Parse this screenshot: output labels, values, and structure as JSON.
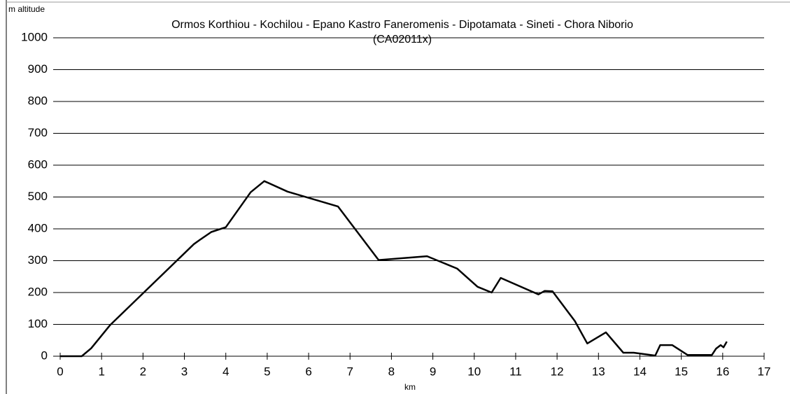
{
  "chart_data": {
    "type": "line",
    "title": "Ormos Korthiou - Kochilou - Epano Kastro Faneromenis - Dipotamata - Sineti - Chora  Niborio",
    "subtitle": "(CA02011x)",
    "y_label": "m altitude",
    "x_label": "km",
    "color": "#000000",
    "grid": true,
    "x": [
      0,
      0.52,
      0.75,
      1.0,
      1.2,
      3.23,
      3.37,
      3.65,
      4.0,
      4.6,
      4.93,
      5.49,
      6.71,
      7.69,
      8.86,
      9.59,
      10.08,
      10.42,
      10.64,
      11.55,
      11.7,
      11.89,
      12.43,
      12.73,
      13.18,
      13.6,
      13.85,
      14.37,
      14.49,
      14.78,
      15.15,
      15.74,
      15.84,
      15.95,
      16.02,
      16.1
    ],
    "values": [
      0,
      0,
      25,
      65,
      97,
      352,
      365,
      390,
      405,
      515,
      550,
      517,
      470,
      302,
      314,
      275,
      218,
      200,
      246,
      194,
      205,
      204,
      110,
      40,
      75,
      11,
      11,
      2,
      35,
      35,
      4,
      4,
      24,
      35,
      28,
      46
    ],
    "xlim": [
      0,
      17
    ],
    "xticks": [
      0,
      1,
      2,
      3,
      4,
      5,
      6,
      7,
      8,
      9,
      10,
      11,
      12,
      13,
      14,
      15,
      16,
      17
    ],
    "ylim": [
      0,
      1000
    ],
    "yticks": [
      0,
      100,
      200,
      300,
      400,
      500,
      600,
      700,
      800,
      900,
      1000
    ]
  }
}
